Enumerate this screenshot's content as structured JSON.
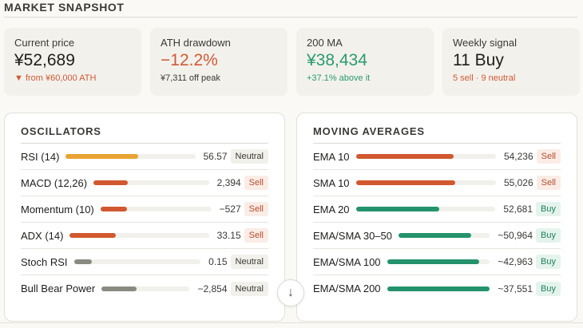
{
  "header": {
    "title": "MARKET SNAPSHOT"
  },
  "stats": [
    {
      "label": "Current price",
      "value": "¥52,689",
      "sub": "▼ from ¥60,000 ATH",
      "value_tone": "default",
      "sub_tone": "red"
    },
    {
      "label": "ATH drawdown",
      "value": "−12.2%",
      "sub": "¥7,311 off peak",
      "value_tone": "red",
      "sub_tone": "default"
    },
    {
      "label": "200 MA",
      "value": "¥38,434",
      "sub": "+37.1% above it",
      "value_tone": "green",
      "sub_tone": "green"
    },
    {
      "label": "Weekly signal",
      "value": "11 Buy",
      "sub": "5 sell · 9 neutral",
      "value_tone": "default",
      "sub_tone": "red"
    }
  ],
  "oscillators": {
    "title": "OSCILLATORS",
    "rows": [
      {
        "name": "RSI (14)",
        "value": "56.57",
        "signal": "Neutral",
        "fill": 0.56,
        "color": "#e8a332"
      },
      {
        "name": "MACD (12,26)",
        "value": "2,394",
        "signal": "Sell",
        "fill": 0.3,
        "color": "#d1582f"
      },
      {
        "name": "Momentum (10)",
        "value": "−527",
        "signal": "Sell",
        "fill": 0.24,
        "color": "#d1582f"
      },
      {
        "name": "ADX (14)",
        "value": "33.15",
        "signal": "Sell",
        "fill": 0.33,
        "color": "#d1582f"
      },
      {
        "name": "Stoch RSI",
        "value": "0.15",
        "signal": "Neutral",
        "fill": 0.14,
        "color": "#8a8a82"
      },
      {
        "name": "Bull Bear Power",
        "value": "−2,854",
        "signal": "Neutral",
        "fill": 0.4,
        "color": "#8a8a82"
      }
    ]
  },
  "moving_averages": {
    "title": "MOVING AVERAGES",
    "rows": [
      {
        "name": "EMA 10",
        "value": "54,236",
        "signal": "Sell",
        "fill": 0.7,
        "color": "#d1582f"
      },
      {
        "name": "SMA 10",
        "value": "55,026",
        "signal": "Sell",
        "fill": 0.71,
        "color": "#d1582f"
      },
      {
        "name": "EMA 20",
        "value": "52,681",
        "signal": "Buy",
        "fill": 0.6,
        "color": "#24936b"
      },
      {
        "name": "EMA/SMA 30–50",
        "value": "~50,964",
        "signal": "Buy",
        "fill": 0.8,
        "color": "#24936b"
      },
      {
        "name": "EMA/SMA 100",
        "value": "~42,963",
        "signal": "Buy",
        "fill": 0.9,
        "color": "#24936b"
      },
      {
        "name": "EMA/SMA 200",
        "value": "~37,551",
        "signal": "Buy",
        "fill": 1.0,
        "color": "#24936b"
      }
    ]
  },
  "scroll_button": {
    "icon": "arrow-down-icon",
    "glyph": "↓"
  }
}
